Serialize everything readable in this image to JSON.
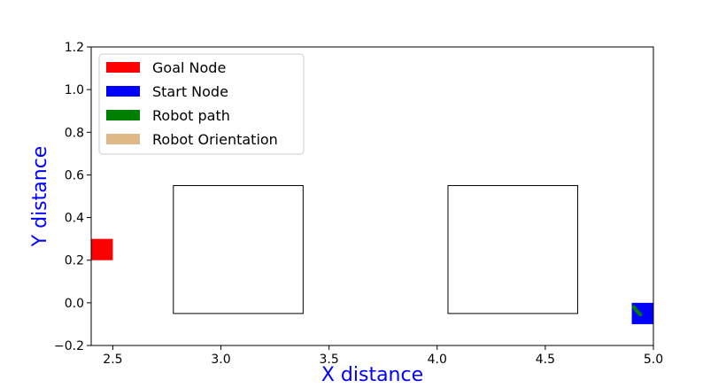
{
  "chart_data": {
    "type": "scatter",
    "xlabel": "X distance",
    "ylabel": "Y distance",
    "xlim": [
      2.4,
      5.0
    ],
    "ylim": [
      -0.2,
      1.2
    ],
    "x_ticks": [
      "2.5",
      "3.0",
      "3.5",
      "4.0",
      "4.5",
      "5.0"
    ],
    "y_ticks": [
      "1.2",
      "1.0",
      "0.8",
      "0.6",
      "0.4",
      "0.2",
      "0.0",
      "−0.2"
    ],
    "x_tick_values": [
      2.5,
      3.0,
      3.5,
      4.0,
      4.5,
      5.0
    ],
    "y_tick_values": [
      1.2,
      1.0,
      0.8,
      0.6,
      0.4,
      0.2,
      0.0,
      -0.2
    ],
    "legend": {
      "placement": "upper-left",
      "entries": [
        {
          "label": "Goal Node",
          "color": "#ff0000"
        },
        {
          "label": "Start Node",
          "color": "#0000ff"
        },
        {
          "label": "Robot path",
          "color": "#008000"
        },
        {
          "label": "Robot Orientation",
          "color": "#deb887"
        }
      ]
    },
    "obstacles": [
      {
        "x0": 2.78,
        "x1": 3.38,
        "y0": -0.05,
        "y1": 0.55
      },
      {
        "x0": 4.05,
        "x1": 4.65,
        "y0": -0.05,
        "y1": 0.55
      }
    ],
    "goal_node": {
      "x0": 2.4,
      "x1": 2.5,
      "y0": 0.2,
      "y1": 0.3
    },
    "start_node": {
      "x0": 4.9,
      "x1": 5.0,
      "y0": -0.1,
      "y1": 0.0
    },
    "robot_path": [
      {
        "x": 4.91,
        "y": -0.02
      },
      {
        "x": 4.925,
        "y": -0.04
      },
      {
        "x": 4.94,
        "y": -0.055
      }
    ],
    "colors": {
      "axis_title": "#0000ff",
      "goal": "#ff0000",
      "start": "#0000ff",
      "path": "#008000"
    }
  }
}
